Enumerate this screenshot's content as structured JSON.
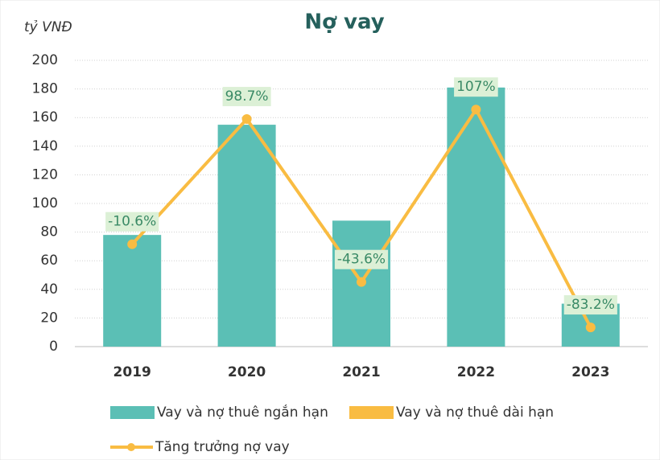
{
  "chart_data": {
    "type": "bar",
    "title": "Nợ vay",
    "y_axis_label": "tỷ VNĐ",
    "categories": [
      "2019",
      "2020",
      "2021",
      "2022",
      "2023"
    ],
    "series": [
      {
        "name": "Vay và nợ thuê ngắn hạn",
        "color": "#5bbfb5",
        "values": [
          78,
          155,
          88,
          181,
          30
        ]
      },
      {
        "name": "Vay và nợ thuê dài hạn",
        "color": "#f9bc42",
        "values": [
          0,
          0,
          0,
          0,
          0
        ]
      },
      {
        "name": "Tăng trưởng nợ vay",
        "type": "line",
        "axis": "y2",
        "color": "#f9bc42",
        "values": [
          -10.6,
          98.7,
          -43.6,
          107,
          -83.2
        ],
        "value_labels": [
          "-10.6%",
          "98.7%",
          "-43.6%",
          "107%",
          "-83.2%"
        ]
      }
    ],
    "ylim": [
      0,
      200
    ],
    "yticks": [
      0,
      20,
      40,
      60,
      80,
      100,
      120,
      140,
      160,
      180,
      200
    ],
    "y2lim": [
      -100,
      150
    ],
    "grid": true
  }
}
